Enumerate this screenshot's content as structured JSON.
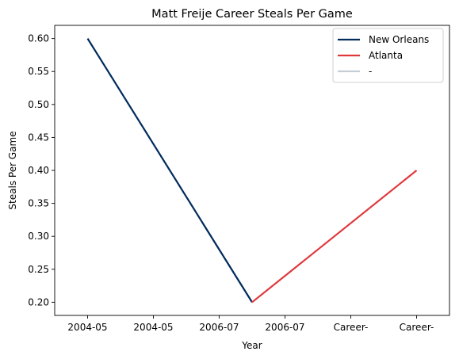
{
  "chart_data": {
    "type": "line",
    "title": "Matt Freije Career Steals Per Game",
    "xlabel": "Year",
    "ylabel": "Steals Per Game",
    "x_tick_labels": [
      "2004-05",
      "2004-05",
      "2006-07",
      "2006-07",
      "Career-",
      "Career-"
    ],
    "x_range": [
      -0.2,
      2.2
    ],
    "ylim": [
      0.18,
      0.62
    ],
    "y_ticks": [
      0.2,
      0.25,
      0.3,
      0.35,
      0.4,
      0.45,
      0.5,
      0.55,
      0.6
    ],
    "grid": false,
    "legend_position": "top-right",
    "series": [
      {
        "name": "New Orleans",
        "color": "#002B5C",
        "points": [
          [
            0,
            0.6
          ],
          [
            1,
            0.2
          ]
        ]
      },
      {
        "name": "Atlanta",
        "color": "#E03A3E",
        "points": [
          [
            1,
            0.2
          ],
          [
            2,
            0.4
          ]
        ]
      },
      {
        "name": "-",
        "color": "#C4CED4",
        "points": []
      }
    ]
  }
}
